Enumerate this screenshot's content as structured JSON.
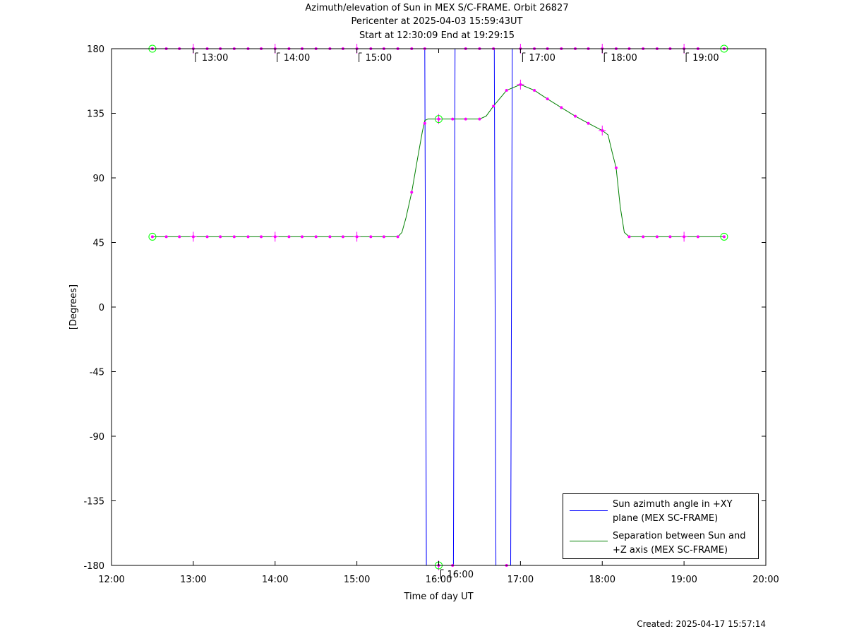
{
  "title": {
    "line1": "Azimuth/elevation of Sun in MEX S/C-FRAME.  Orbit 26827",
    "line2": "Pericenter at 2025-04-03 15:59:43UT",
    "line3": "Start at 12:30:09 End at 19:29:15"
  },
  "created": "Created: 2025-04-17 15:57:14",
  "colors": {
    "azimuth": "#0000ff",
    "separation": "#008000",
    "marker": "#ff00ff",
    "circle": "#00ff00"
  },
  "chart_data": {
    "type": "line",
    "xlabel": "Time of day UT",
    "ylabel": "[Degrees]",
    "xlim": [
      12,
      20
    ],
    "ylim": [
      -180,
      180
    ],
    "x_ticks": [
      12,
      13,
      14,
      15,
      16,
      17,
      18,
      19,
      20
    ],
    "x_tick_labels": [
      "12:00",
      "13:00",
      "14:00",
      "15:00",
      "16:00",
      "17:00",
      "18:00",
      "19:00",
      "20:00"
    ],
    "y_ticks": [
      180,
      135,
      90,
      45,
      0,
      -45,
      -90,
      -135,
      -180
    ],
    "y_tick_labels": [
      "180",
      "135",
      "90",
      "45",
      "0",
      "-45",
      "-90",
      "-135",
      "-180"
    ],
    "annotations": [
      {
        "x": 13.0,
        "y": 180,
        "text": "13:00"
      },
      {
        "x": 14.0,
        "y": 180,
        "text": "14:00"
      },
      {
        "x": 15.0,
        "y": 180,
        "text": "15:00"
      },
      {
        "x": 16.0,
        "y": -180,
        "text": "16:00"
      },
      {
        "x": 17.0,
        "y": 180,
        "text": "17:00"
      },
      {
        "x": 18.0,
        "y": 180,
        "text": "18:00"
      },
      {
        "x": 19.0,
        "y": 180,
        "text": "19:00"
      }
    ],
    "series": [
      {
        "name": "Sun azimuth angle in +XY plane (MEX SC-FRAME)",
        "color": "#0000ff",
        "x": [
          12.5,
          15.83,
          15.84,
          15.85,
          16.18,
          16.19,
          16.2,
          16.68,
          16.69,
          16.7,
          16.88,
          16.89,
          16.9,
          19.49
        ],
        "y": [
          180,
          180,
          0,
          -180,
          -180,
          0,
          180,
          180,
          0,
          -180,
          -180,
          0,
          180,
          180
        ]
      },
      {
        "name": "Separation between Sun and +Z axis (MEX SC-FRAME)",
        "color": "#008000",
        "x": [
          12.5,
          15.5,
          15.55,
          15.6,
          15.67,
          15.74,
          15.8,
          15.83,
          15.87,
          16.0,
          16.2,
          16.5,
          16.58,
          16.67,
          16.83,
          17.0,
          17.17,
          17.33,
          17.5,
          17.67,
          17.83,
          18.0,
          18.07,
          18.12,
          18.17,
          18.22,
          18.27,
          18.33,
          19.49
        ],
        "y": [
          49,
          49,
          52,
          62,
          80,
          103,
          122,
          130,
          131,
          131,
          131,
          131,
          133,
          140,
          151,
          155,
          151,
          145,
          139,
          133,
          128,
          123,
          120,
          108,
          97,
          70,
          52,
          49,
          49
        ]
      }
    ],
    "markers": {
      "x": [
        12.5,
        12.67,
        12.83,
        13.0,
        13.17,
        13.33,
        13.5,
        13.67,
        13.83,
        14.0,
        14.17,
        14.33,
        14.5,
        14.67,
        14.83,
        15.0,
        15.17,
        15.33,
        15.5,
        15.67,
        15.83,
        16.0,
        16.17,
        16.33,
        16.5,
        16.67,
        16.83,
        17.0,
        17.17,
        17.33,
        17.5,
        17.67,
        17.83,
        18.0,
        18.17,
        18.33,
        18.5,
        18.67,
        18.83,
        19.0,
        19.17,
        19.49
      ],
      "azimuth_y": [
        180,
        180,
        180,
        180,
        180,
        180,
        180,
        180,
        180,
        180,
        180,
        180,
        180,
        180,
        180,
        180,
        180,
        180,
        180,
        180,
        180,
        -180,
        -180,
        180,
        180,
        180,
        -180,
        180,
        180,
        180,
        180,
        180,
        180,
        180,
        180,
        180,
        180,
        180,
        180,
        180,
        180,
        180
      ],
      "separation_y": [
        49,
        49,
        49,
        49,
        49,
        49,
        49,
        49,
        49,
        49,
        49,
        49,
        49,
        49,
        49,
        49,
        49,
        49,
        49,
        80,
        128,
        131,
        131,
        131,
        131,
        140,
        151,
        155,
        151,
        145,
        139,
        133,
        128,
        123,
        97,
        49,
        49,
        49,
        49,
        49,
        49,
        49
      ],
      "circles": [
        {
          "x": 12.5,
          "y": 180
        },
        {
          "x": 19.49,
          "y": 180
        },
        {
          "x": 12.5,
          "y": 49
        },
        {
          "x": 19.49,
          "y": 49
        },
        {
          "x": 16.0,
          "y": 131
        },
        {
          "x": 16.0,
          "y": -180
        }
      ]
    },
    "legend": {
      "placement": "bottom-right",
      "entries": [
        {
          "line1": "Sun azimuth angle in +XY",
          "line2": "plane (MEX SC-FRAME)",
          "color": "#0000ff"
        },
        {
          "line1": "Separation between Sun and",
          "line2": "+Z axis (MEX SC-FRAME)",
          "color": "#008000"
        }
      ]
    },
    "grid": false
  }
}
